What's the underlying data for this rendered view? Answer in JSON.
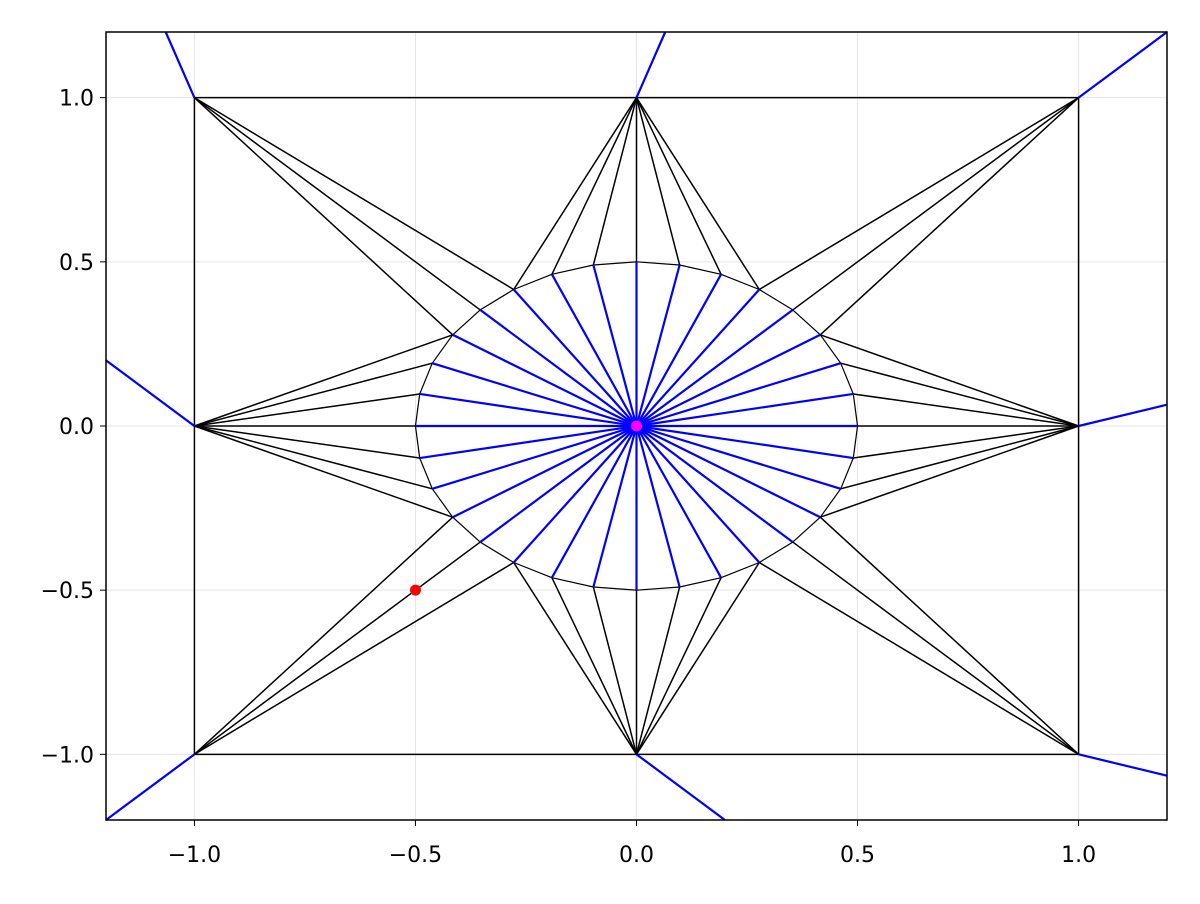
{
  "chart_data": {
    "type": "line",
    "title": "",
    "xlabel": "",
    "ylabel": "",
    "xlim": [
      -1.2,
      1.2
    ],
    "ylim": [
      -1.2,
      1.2
    ],
    "grid": true,
    "x_ticks": [
      -1.0,
      -0.5,
      0.0,
      0.5,
      1.0
    ],
    "y_ticks": [
      -1.0,
      -0.5,
      0.0,
      0.5,
      1.0
    ],
    "x_tick_labels": [
      "−1.0",
      "−0.5",
      "0.0",
      "0.5",
      "1.0"
    ],
    "y_tick_labels": [
      "−1.0",
      "−0.5",
      "0.0",
      "0.5",
      "1.0"
    ],
    "boundary_points": [
      [
        -1,
        -1
      ],
      [
        0,
        -1
      ],
      [
        1,
        -1
      ],
      [
        1,
        0
      ],
      [
        1,
        1
      ],
      [
        0,
        1
      ],
      [
        -1,
        1
      ],
      [
        -1,
        0
      ]
    ],
    "circle": {
      "center": [
        0,
        0
      ],
      "radius": 0.5,
      "n_points": 32
    },
    "triangulation_color": "#000000",
    "voronoi_color": "#0000ff",
    "voronoi_rays": [
      [
        [
          -1,
          0
        ],
        [
          -1.2,
          0.2
        ]
      ],
      [
        [
          -1,
          1
        ],
        [
          -1.065,
          1.2
        ]
      ],
      [
        [
          0,
          1
        ],
        [
          0.065,
          1.2
        ]
      ],
      [
        [
          1,
          1
        ],
        [
          1.2,
          1.2
        ]
      ],
      [
        [
          1,
          0
        ],
        [
          1.2,
          0.065
        ]
      ],
      [
        [
          1,
          -1
        ],
        [
          1.2,
          -1.065
        ]
      ],
      [
        [
          0,
          -1
        ],
        [
          0.2,
          -1.2
        ]
      ],
      [
        [
          -1,
          -1
        ],
        [
          -1.2,
          -1.2
        ]
      ]
    ],
    "highlight_points": [
      {
        "x": -0.5,
        "y": -0.5,
        "color": "#ff0000"
      },
      {
        "x": 0.0,
        "y": 0.0,
        "color": "#ff00ff"
      }
    ]
  }
}
